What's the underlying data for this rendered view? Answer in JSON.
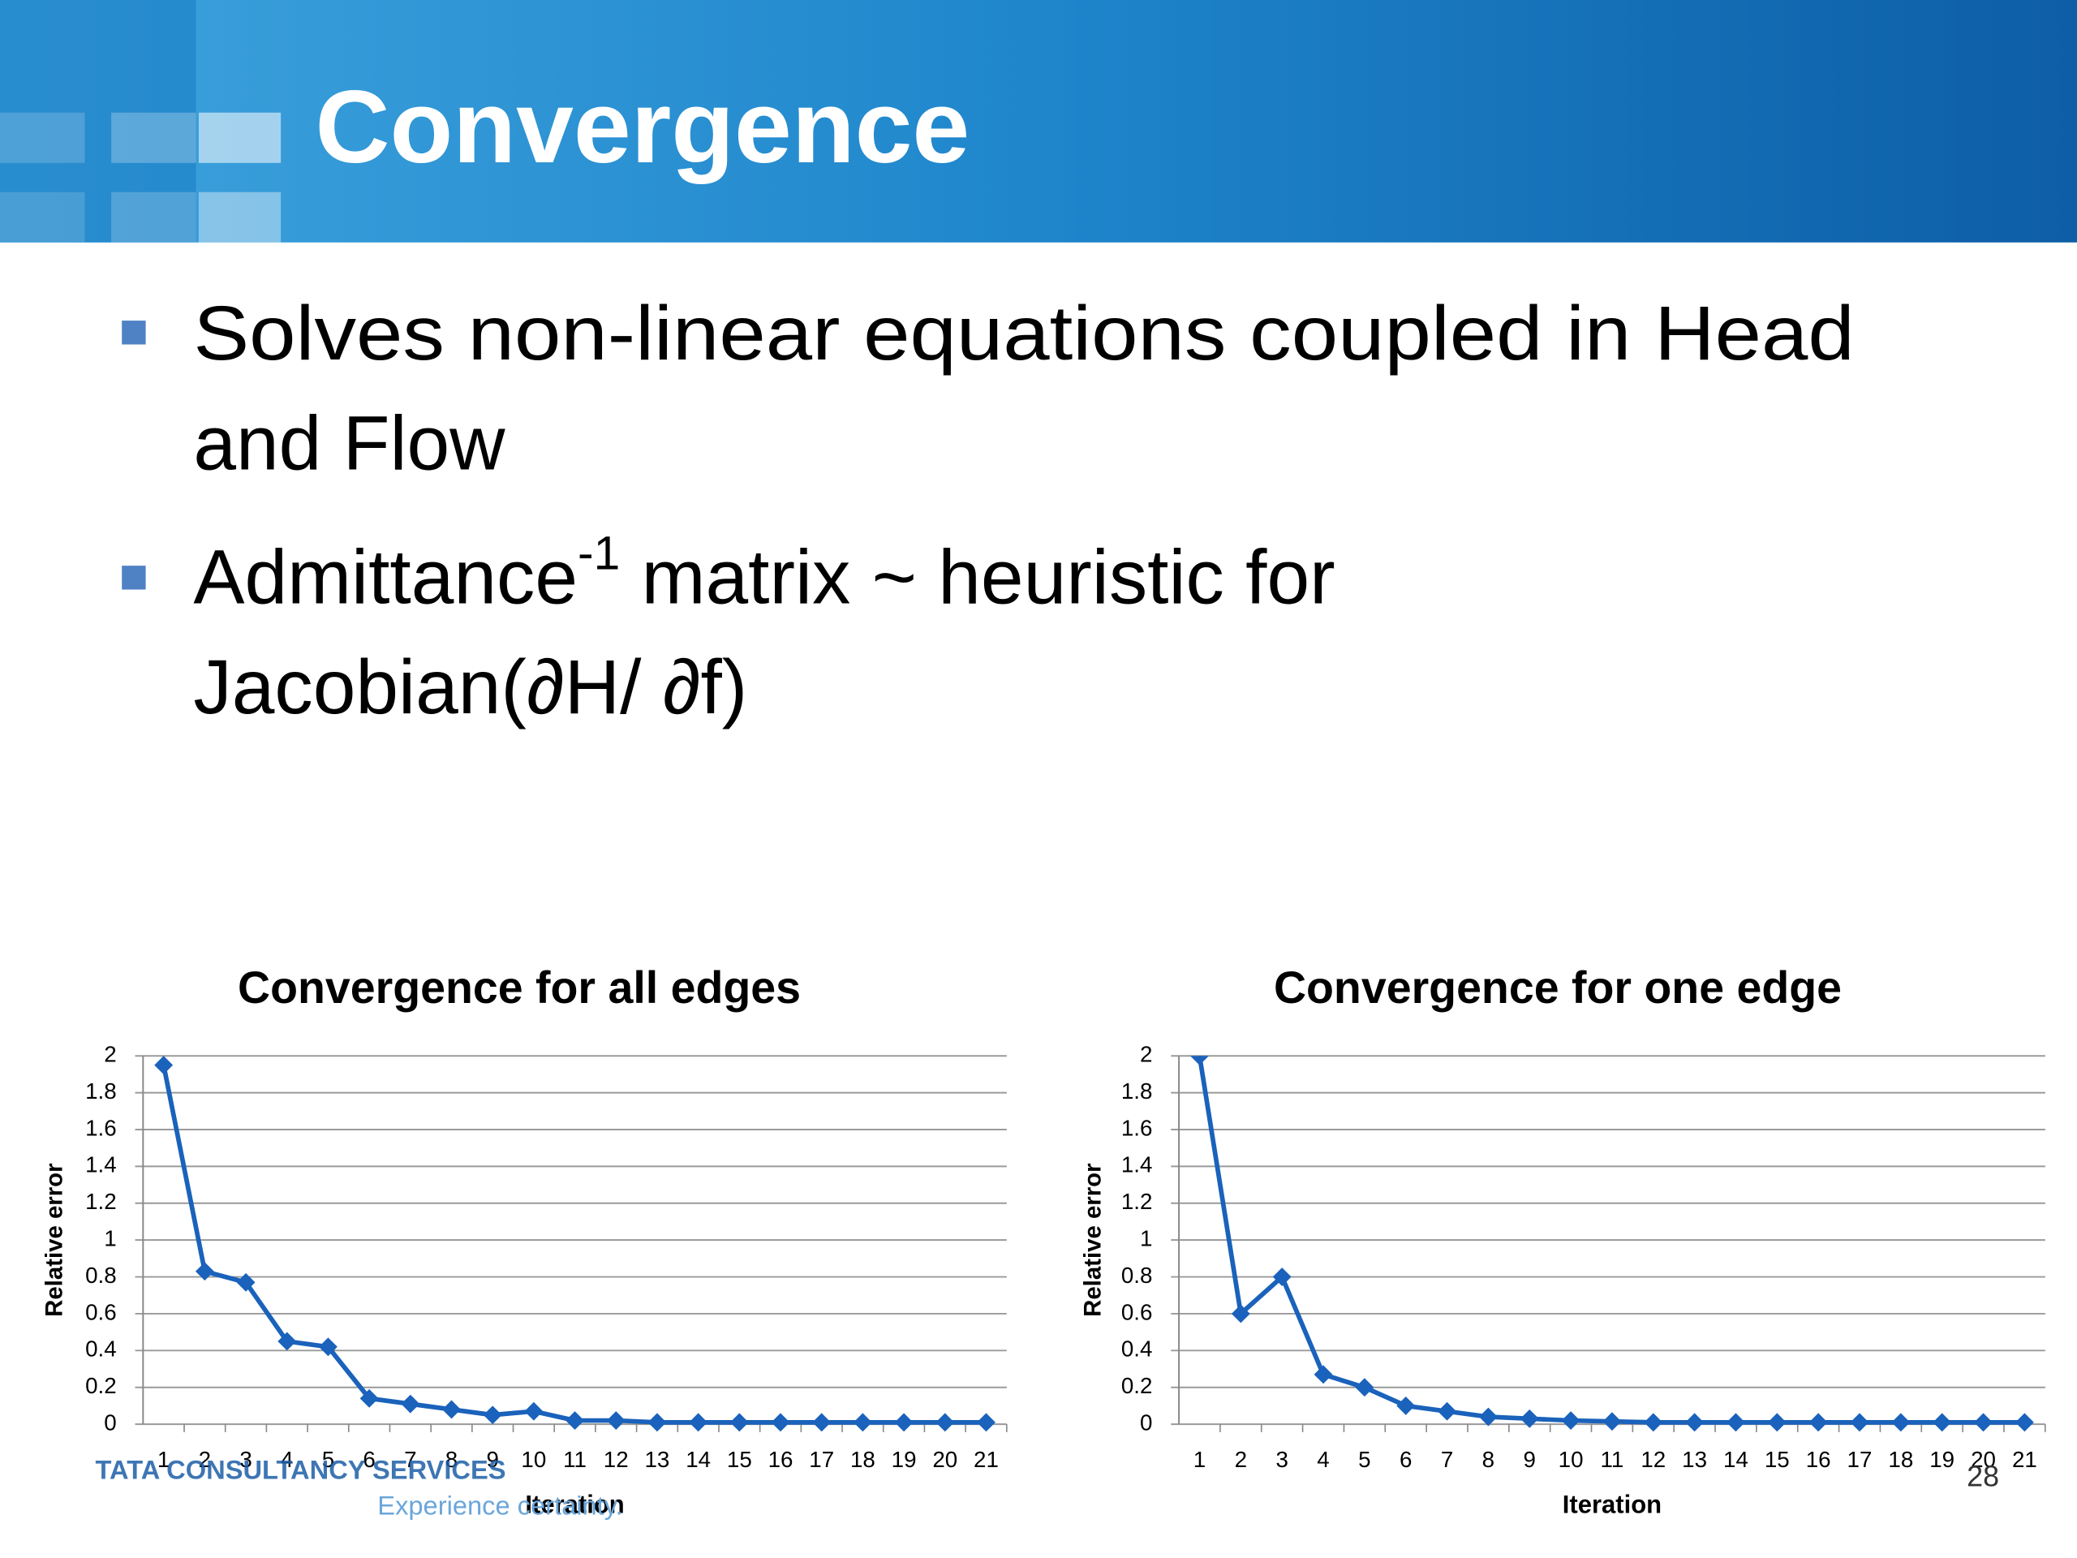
{
  "header": {
    "title": "Convergence"
  },
  "bullets": [
    {
      "lines": [
        "Solves non-linear equations coupled in Head",
        "and Flow"
      ]
    },
    {
      "lines": [
        {
          "text": "Admittance",
          "sup": "-1",
          "rest": " matrix ~ heuristic for"
        },
        "Jacobian(∂H/ ∂f)"
      ]
    }
  ],
  "footer": {
    "company": "TATA CONSULTANCY SERVICES",
    "tagline": "Experience certainty."
  },
  "slide_number": "28",
  "chart_data": [
    {
      "type": "line",
      "title": "Convergence for all edges",
      "x_label": "Iteration",
      "y_label": "Relative error",
      "categories": [
        "1",
        "2",
        "3",
        "4",
        "5",
        "6",
        "7",
        "8",
        "9",
        "10",
        "11",
        "12",
        "13",
        "14",
        "15",
        "16",
        "17",
        "18",
        "19",
        "20",
        "21"
      ],
      "values": [
        1.95,
        0.83,
        0.77,
        0.45,
        0.42,
        0.14,
        0.11,
        0.08,
        0.05,
        0.07,
        0.02,
        0.02,
        0.01,
        0.01,
        0.01,
        0.01,
        0.01,
        0.01,
        0.01,
        0.01,
        0.01
      ],
      "color": "#1a62bb",
      "ylim": [
        0,
        2
      ],
      "yticks": [
        0,
        0.2,
        0.4,
        0.6,
        0.8,
        1,
        1.2,
        1.4,
        1.6,
        1.8,
        2
      ],
      "grid": true
    },
    {
      "type": "line",
      "title": "Convergence for one edge",
      "x_label": "Iteration",
      "y_label": "Relative error",
      "categories": [
        "1",
        "2",
        "3",
        "4",
        "5",
        "6",
        "7",
        "8",
        "9",
        "10",
        "11",
        "12",
        "13",
        "14",
        "15",
        "16",
        "17",
        "18",
        "19",
        "20",
        "21"
      ],
      "values": [
        2,
        0.6,
        0.8,
        0.27,
        0.2,
        0.1,
        0.07,
        0.04,
        0.03,
        0.02,
        0.015,
        0.01,
        0.01,
        0.01,
        0.01,
        0.01,
        0.01,
        0.01,
        0.01,
        0.01,
        0.01
      ],
      "color": "#1a62bb",
      "ylim": [
        0,
        2
      ],
      "yticks": [
        0,
        0.2,
        0.4,
        0.6,
        0.8,
        1,
        1.2,
        1.4,
        1.6,
        1.8,
        2
      ],
      "grid": true
    }
  ]
}
